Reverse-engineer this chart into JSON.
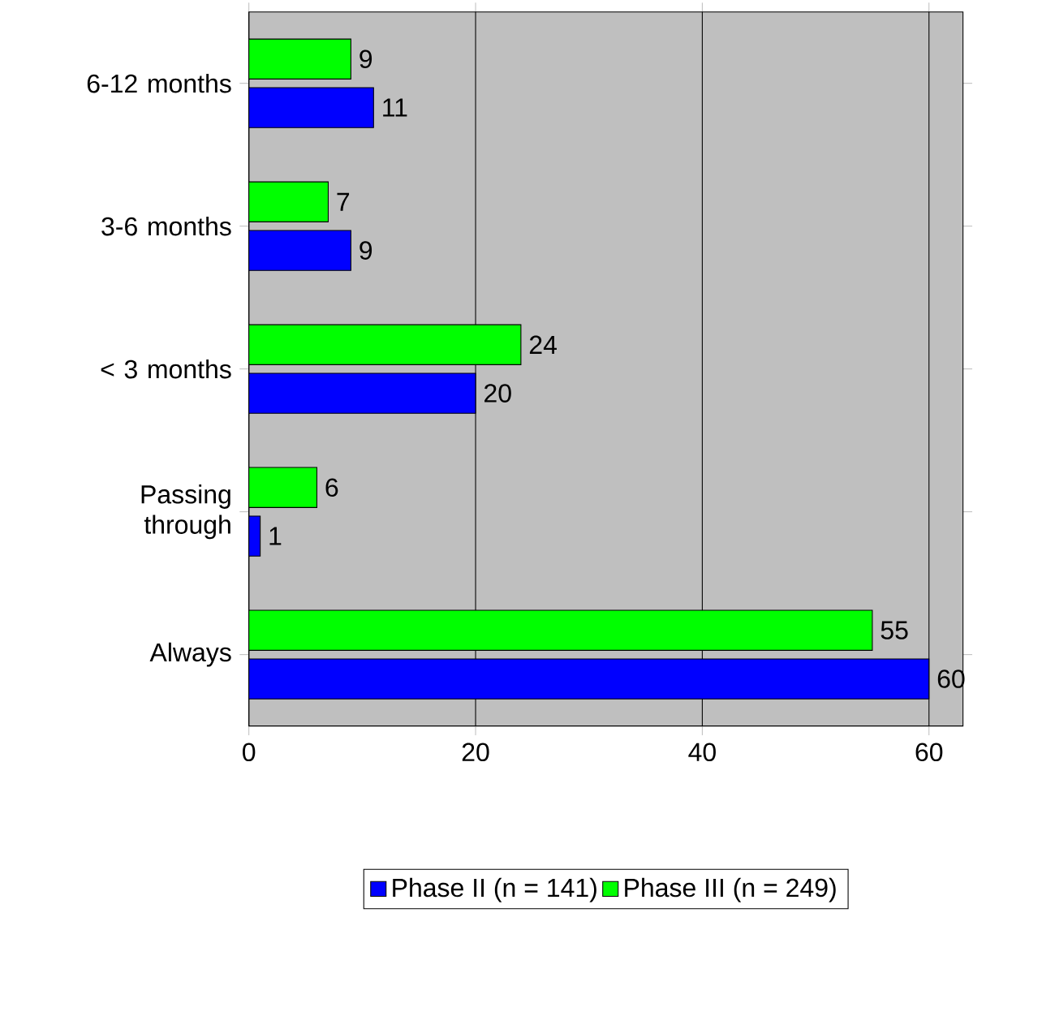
{
  "chart_data": {
    "type": "bar",
    "orientation": "horizontal",
    "categories": [
      "6-12 months",
      "3-6 months",
      "< 3 months",
      "Passing through",
      "Always"
    ],
    "series": [
      {
        "name": "Phase II (n = 141)",
        "color": "#0000ff",
        "values": [
          11,
          9,
          20,
          1,
          60
        ]
      },
      {
        "name": "Phase III (n = 249)",
        "color": "#00ff00",
        "values": [
          9,
          7,
          24,
          6,
          55
        ]
      }
    ],
    "xlim": [
      0,
      63
    ],
    "xticks": [
      0,
      20,
      40,
      60
    ],
    "grid": "x",
    "legend": "bottom",
    "data_labels": true
  }
}
